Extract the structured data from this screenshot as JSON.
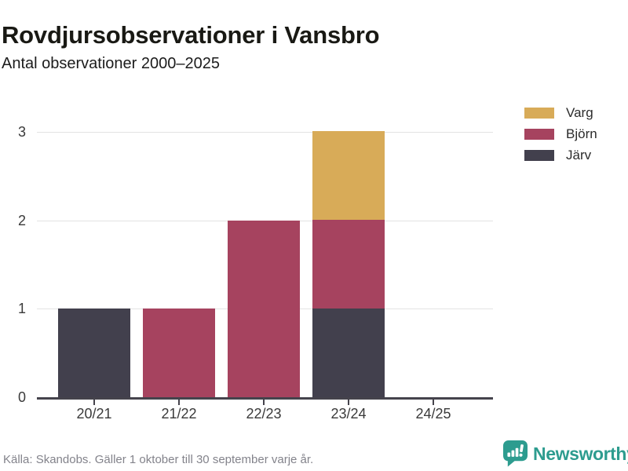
{
  "header": {
    "title": "Rovdjursobservationer i Vansbro",
    "subtitle": "Antal observationer 2000–2025"
  },
  "chart_data": {
    "type": "bar",
    "stacked": true,
    "title": "Rovdjursobservationer i Vansbro",
    "subtitle": "Antal observationer 2000–2025",
    "categories": [
      "20/21",
      "21/22",
      "22/23",
      "23/24",
      "24/25"
    ],
    "series": [
      {
        "name": "Järv",
        "color": "#42404d",
        "values": [
          1,
          0,
          0,
          1,
          0
        ]
      },
      {
        "name": "Björn",
        "color": "#a6435f",
        "values": [
          0,
          1,
          2,
          1,
          0
        ]
      },
      {
        "name": "Varg",
        "color": "#d8ab58",
        "values": [
          0,
          0,
          0,
          1,
          0
        ]
      }
    ],
    "legend": [
      {
        "label": "Varg",
        "color": "#d8ab58"
      },
      {
        "label": "Björn",
        "color": "#a6435f"
      },
      {
        "label": "Järv",
        "color": "#42404d"
      }
    ],
    "legend_position": "top-right",
    "yticks": [
      0,
      1,
      2,
      3
    ],
    "ylim": [
      0,
      3
    ],
    "grid": true,
    "xlabel": "",
    "ylabel": ""
  },
  "footer": {
    "source": "Källa: Skandobs. Gäller 1 oktober till 30 september varje år.",
    "brand": "Newsworthy"
  },
  "colors": {
    "varg": "#d8ab58",
    "bjorn": "#a6435f",
    "jarv": "#42404d",
    "brand_teal": "#2d9c8f",
    "gridline": "#e3e3e3",
    "axis": "#45434c"
  }
}
